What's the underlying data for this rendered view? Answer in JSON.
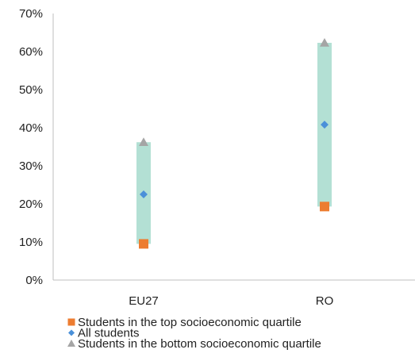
{
  "chart_data": {
    "type": "scatter",
    "categories": [
      "EU27",
      "RO"
    ],
    "y_ticks": [
      "0%",
      "10%",
      "20%",
      "30%",
      "40%",
      "50%",
      "60%",
      "70%"
    ],
    "ylim": [
      0,
      70
    ],
    "y_unit": "%",
    "grid": false,
    "legend_position": "bottom-left",
    "range_band_color": "#b3e0d4",
    "series": [
      {
        "name": "Students in the top socioeconomic quartile",
        "values": [
          9.5,
          19.3
        ],
        "marker": "square",
        "color": "#ED7D31"
      },
      {
        "name": "All students",
        "values": [
          22.5,
          40.8
        ],
        "marker": "diamond",
        "color": "#4A90D9"
      },
      {
        "name": "Students in the bottom socioeconomic quartile",
        "values": [
          36.2,
          62.3
        ],
        "marker": "triangle",
        "color": "#A5A5A5"
      }
    ]
  }
}
